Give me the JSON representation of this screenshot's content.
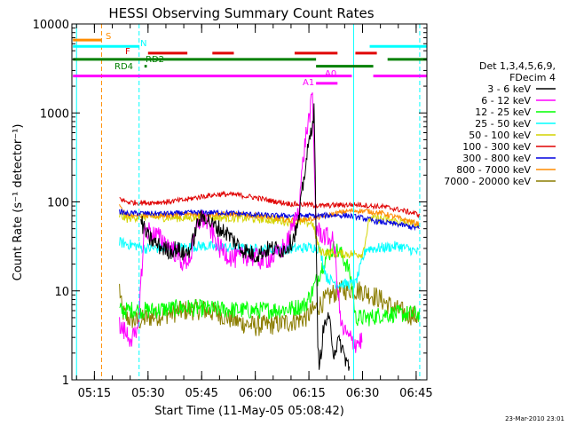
{
  "chart_data": {
    "type": "line",
    "title": "HESSI Observing Summary Count Rates",
    "xlabel": "Start Time (11-May-05 05:08:42)",
    "ylabel": "Count Rate (s⁻¹ detector⁻¹)",
    "footer": "23-Mar-2010 23:01",
    "yscale": "log",
    "xlim": [
      "05:08:42",
      "06:48:00"
    ],
    "ylim": [
      1,
      10000
    ],
    "x_ticks": [
      "05:15",
      "05:30",
      "05:45",
      "06:00",
      "06:15",
      "06:30",
      "06:45"
    ],
    "y_ticks": [
      "1",
      "10",
      "100",
      "1000",
      "10000"
    ],
    "legend": {
      "title_lines": [
        "Det 1,3,4,5,6,9,",
        "FDecim 4"
      ],
      "position": "right",
      "entries": [
        {
          "label": "3 - 6 keV",
          "color": "#000000"
        },
        {
          "label": "6 - 12 keV",
          "color": "#ff00ff"
        },
        {
          "label": "12 - 25 keV",
          "color": "#00ff00"
        },
        {
          "label": "25 - 50 keV",
          "color": "#00ffff"
        },
        {
          "label": "50 - 100 keV",
          "color": "#d4d400"
        },
        {
          "label": "100 - 300 keV",
          "color": "#e00000"
        },
        {
          "label": "300 - 800 keV",
          "color": "#0000e0"
        },
        {
          "label": "800 - 7000 keV",
          "color": "#ff8c00"
        },
        {
          "label": "7000 - 20000 keV",
          "color": "#8b7d00"
        }
      ]
    },
    "vertical_markers": [
      {
        "time": "05:10:00",
        "color": "#00ffff",
        "style": "solid"
      },
      {
        "time": "05:17:00",
        "color": "#ff8c00",
        "style": "dashed"
      },
      {
        "time": "05:27:30",
        "color": "#00ffff",
        "style": "dashed"
      },
      {
        "time": "06:27:30",
        "color": "#00ffff",
        "style": "solid"
      },
      {
        "time": "06:46:00",
        "color": "#00ffff",
        "style": "dashed"
      }
    ],
    "flag_bars": [
      {
        "label": "S",
        "color": "#ff8c00",
        "segments": [
          [
            "05:09:00",
            "05:17:00"
          ]
        ],
        "level": 6600
      },
      {
        "label": "N",
        "color": "#00ffff",
        "segments": [
          [
            "05:09:00",
            "05:27:30"
          ],
          [
            "06:32:00",
            "06:48:00"
          ]
        ],
        "level": 5600
      },
      {
        "label": "F",
        "color": "#e00000",
        "segments": [
          [
            "05:30:00",
            "05:41:00"
          ],
          [
            "05:48:00",
            "05:54:00"
          ],
          [
            "06:11:00",
            "06:23:00"
          ],
          [
            "06:28:00",
            "06:34:00"
          ]
        ],
        "level": 4700
      },
      {
        "label": "RD2",
        "color": "#008000",
        "segments": [
          [
            "05:09:00",
            "06:17:00"
          ],
          [
            "06:37:00",
            "06:48:00"
          ]
        ],
        "level": 4000
      },
      {
        "label": "RD4",
        "color": "#008000",
        "segments": [
          [
            "05:29:00",
            "05:29:40"
          ],
          [
            "06:17:00",
            "06:33:00"
          ]
        ],
        "level": 3350
      },
      {
        "label": "A0",
        "color": "#ff00ff",
        "segments": [
          [
            "05:09:00",
            "06:27:00"
          ],
          [
            "06:33:00",
            "06:48:00"
          ]
        ],
        "level": 2600
      },
      {
        "label": "A1",
        "color": "#ff00ff",
        "segments": [
          [
            "06:17:00",
            "06:23:00"
          ]
        ],
        "level": 2150
      }
    ],
    "series": [
      {
        "name": "3 - 6 keV",
        "color": "#000000",
        "x": [
          "05:28:00",
          "05:30:00",
          "05:33:00",
          "05:36:00",
          "05:38:00",
          "05:40:00",
          "05:42:00",
          "05:44:00",
          "05:46:00",
          "05:48:00",
          "05:52:00",
          "05:56:00",
          "06:00:00",
          "06:04:00",
          "06:08:00",
          "06:10:00",
          "06:12:00",
          "06:14:00",
          "06:15:30",
          "06:16:30",
          "06:17:30",
          "06:18:00",
          "06:19:00",
          "06:20:00",
          "06:21:00",
          "06:22:00",
          "06:23:00",
          "06:24:00",
          "06:25:00",
          "06:26:00",
          "06:26:30"
        ],
        "y": [
          60,
          40,
          32,
          28,
          30,
          26,
          30,
          60,
          70,
          55,
          45,
          30,
          25,
          30,
          29,
          35,
          55,
          250,
          600,
          1100,
          2,
          1.5,
          3.5,
          5,
          4,
          2,
          2.6,
          2.5,
          1.8,
          1.5,
          1.1
        ]
      },
      {
        "name": "6 - 12 keV",
        "color": "#ff00ff",
        "x": [
          "05:22:00",
          "05:25:00",
          "05:27:00",
          "05:29:00",
          "05:31:00",
          "05:33:00",
          "05:36:00",
          "05:38:00",
          "05:40:00",
          "05:42:00",
          "05:44:00",
          "05:46:00",
          "05:50:00",
          "05:54:00",
          "05:58:00",
          "06:02:00",
          "06:06:00",
          "06:09:00",
          "06:12:00",
          "06:14:00",
          "06:16:00",
          "06:17:00",
          "06:18:00",
          "06:20:00",
          "06:22:00",
          "06:24:00",
          "06:26:00",
          "06:28:00",
          "06:30:00"
        ],
        "y": [
          4,
          3,
          3,
          50,
          45,
          40,
          32,
          26,
          20,
          25,
          60,
          65,
          30,
          23,
          25,
          22,
          25,
          35,
          80,
          500,
          1500,
          50,
          45,
          40,
          35,
          4,
          3,
          2.6,
          2.8
        ]
      },
      {
        "name": "12 - 25 keV",
        "color": "#00ff00",
        "x": [
          "05:22:00",
          "05:24:00",
          "05:26:00",
          "05:30:00",
          "05:40:00",
          "05:50:00",
          "06:00:00",
          "06:10:00",
          "06:14:00",
          "06:16:00",
          "06:18:00",
          "06:20:00",
          "06:22:00",
          "06:24:00",
          "06:26:00",
          "06:27:00",
          "06:28:00",
          "06:32:00",
          "06:36:00",
          "06:40:00",
          "06:46:00"
        ],
        "y": [
          6,
          6,
          6.2,
          6,
          6.5,
          6.2,
          6,
          6.3,
          7,
          10,
          16,
          25,
          30,
          26,
          18,
          12,
          5,
          5,
          5.5,
          5.5,
          5.5
        ]
      },
      {
        "name": "25 - 50 keV",
        "color": "#00ffff",
        "x": [
          "05:22:00",
          "05:27:00",
          "05:29:00",
          "05:35:00",
          "05:45:00",
          "05:55:00",
          "06:05:00",
          "06:12:00",
          "06:16:00",
          "06:18:00",
          "06:20:00",
          "06:23:00",
          "06:26:00",
          "06:28:00",
          "06:31:00",
          "06:34:00",
          "06:40:00",
          "06:46:00"
        ],
        "y": [
          35,
          32,
          30,
          30,
          32,
          30,
          29,
          30,
          31,
          30,
          14,
          12,
          12,
          12,
          30,
          30,
          32,
          27
        ]
      },
      {
        "name": "50 - 100 keV",
        "color": "#d4d400",
        "x": [
          "05:22:00",
          "05:24:00",
          "05:27:00",
          "05:30:00",
          "05:40:00",
          "05:50:00",
          "06:00:00",
          "06:10:00",
          "06:16:00",
          "06:18:00",
          "06:20:00",
          "06:25:00",
          "06:30:00",
          "06:32:00",
          "06:35:00",
          "06:40:00",
          "06:46:00"
        ],
        "y": [
          70,
          65,
          68,
          68,
          66,
          67,
          65,
          60,
          58,
          28,
          27,
          26,
          26,
          65,
          65,
          60,
          55
        ]
      },
      {
        "name": "100 - 300 keV",
        "color": "#e00000",
        "x": [
          "05:22:00",
          "05:24:00",
          "05:27:00",
          "05:30:00",
          "05:35:00",
          "05:40:00",
          "05:45:00",
          "05:50:00",
          "05:55:00",
          "06:00:00",
          "06:05:00",
          "06:10:00",
          "06:15:00",
          "06:18:00",
          "06:22:00",
          "06:27:00",
          "06:30:00",
          "06:32:00",
          "06:36:00",
          "06:40:00",
          "06:46:00"
        ],
        "y": [
          110,
          100,
          98,
          98,
          100,
          105,
          115,
          122,
          120,
          112,
          102,
          95,
          93,
          90,
          92,
          93,
          93,
          90,
          88,
          82,
          72
        ]
      },
      {
        "name": "300 - 800 keV",
        "color": "#0000e0",
        "x": [
          "05:22:00",
          "05:24:00",
          "05:27:00",
          "05:30:00",
          "05:35:00",
          "05:40:00",
          "05:45:00",
          "05:50:00",
          "05:55:00",
          "06:00:00",
          "06:05:00",
          "06:10:00",
          "06:14:00",
          "06:18:00",
          "06:22:00",
          "06:26:00",
          "06:30:00",
          "06:34:00",
          "06:40:00",
          "06:46:00"
        ],
        "y": [
          78,
          74,
          75,
          74,
          74,
          75,
          76,
          76,
          74,
          72,
          70,
          70,
          70,
          70,
          71,
          70,
          66,
          60,
          56,
          50
        ]
      },
      {
        "name": "800 - 7000 keV",
        "color": "#ff8c00",
        "x": [
          "05:22:00",
          "05:24:00",
          "05:27:00",
          "05:30:00",
          "05:35:00",
          "05:40:00",
          "05:45:00",
          "05:50:00",
          "05:55:00",
          "06:00:00",
          "06:05:00",
          "06:10:00",
          "06:15:00",
          "06:20:00",
          "06:25:00",
          "06:28:00",
          "06:32:00",
          "06:36:00",
          "06:40:00",
          "06:46:00"
        ],
        "y": [
          88,
          72,
          70,
          70,
          71,
          72,
          73,
          73,
          72,
          70,
          66,
          62,
          64,
          70,
          78,
          80,
          78,
          74,
          66,
          56
        ]
      },
      {
        "name": "7000 - 20000 keV",
        "color": "#8b7d00",
        "x": [
          "05:22:00",
          "05:22:40",
          "05:24:00",
          "05:27:00",
          "05:30:00",
          "05:35:00",
          "05:40:00",
          "05:45:00",
          "05:50:00",
          "05:55:00",
          "06:00:00",
          "06:05:00",
          "06:10:00",
          "06:14:00",
          "06:18:00",
          "06:22:00",
          "06:26:00",
          "06:30:00",
          "06:34:00",
          "06:40:00",
          "06:46:00"
        ],
        "y": [
          11,
          6,
          5,
          4.5,
          5,
          5.5,
          6,
          6.2,
          5.5,
          4.5,
          4,
          4.2,
          4.5,
          5,
          7,
          9.5,
          10.5,
          10,
          8.5,
          6,
          5
        ]
      }
    ]
  }
}
